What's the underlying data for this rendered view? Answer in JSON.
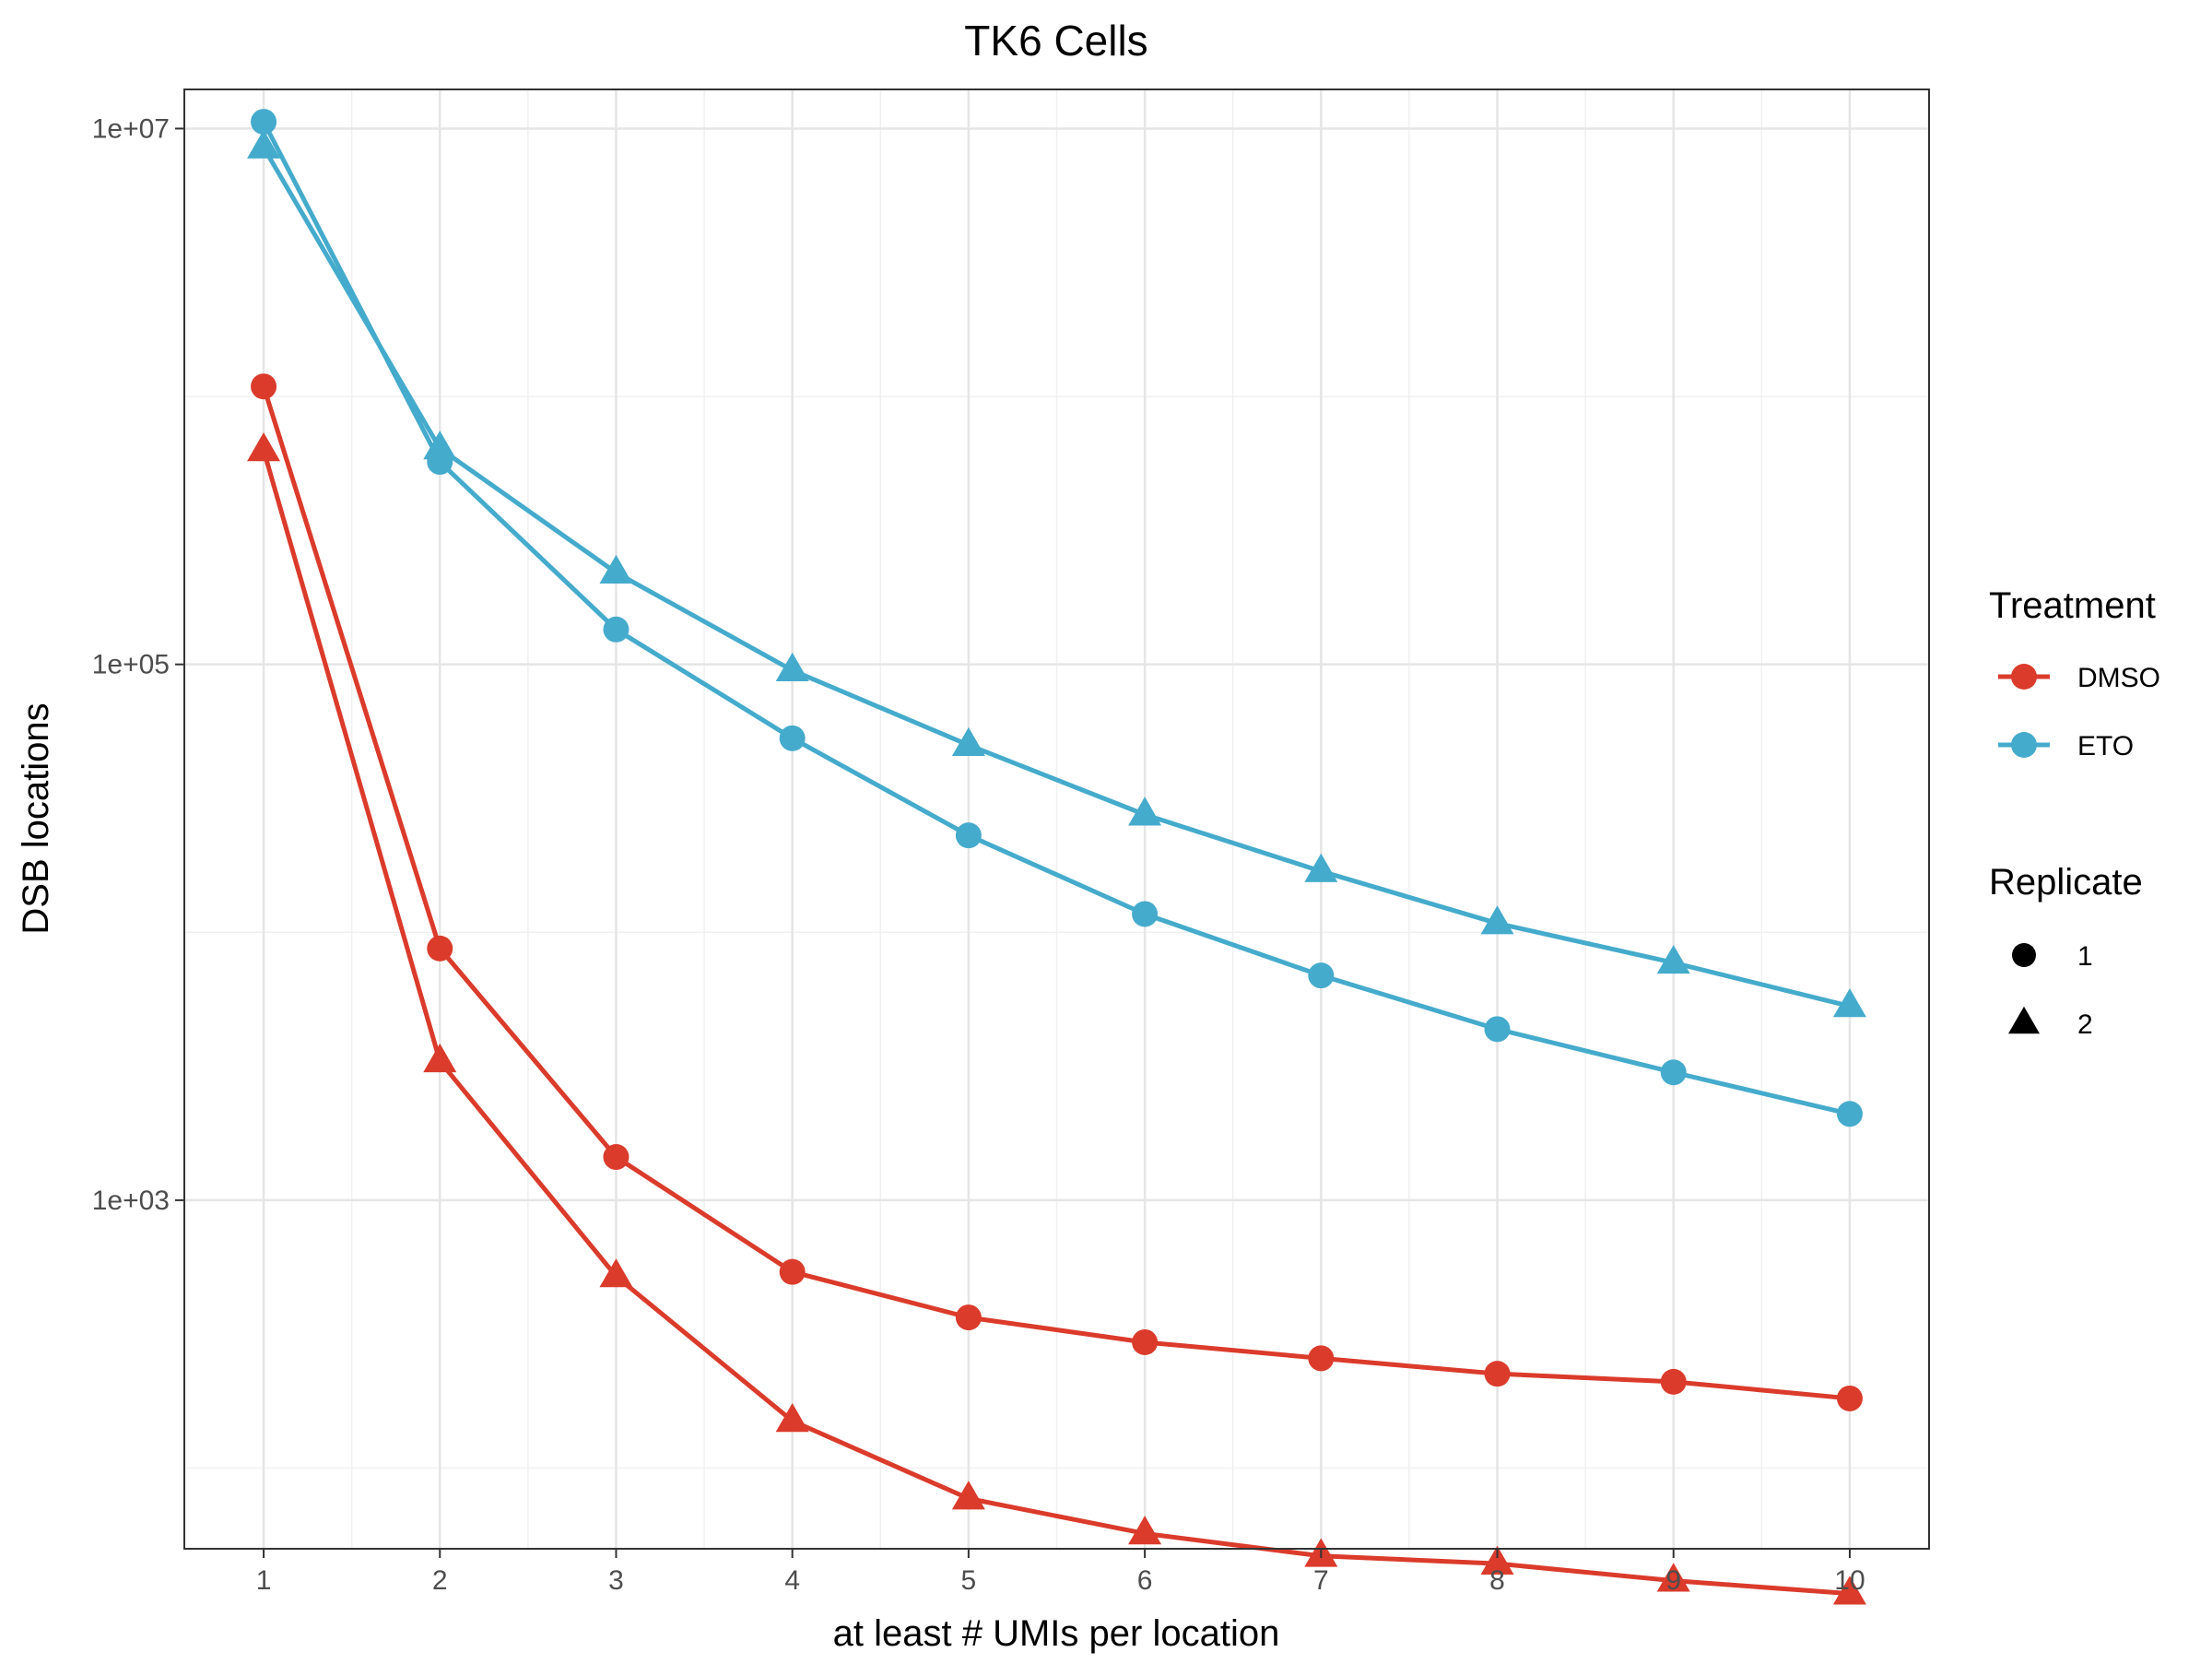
{
  "chart_data": {
    "type": "line",
    "title": "TK6 Cells",
    "xlabel": "at least # UMIs per location",
    "ylabel": "DSB locations",
    "x": [
      1,
      2,
      3,
      4,
      5,
      6,
      7,
      8,
      9,
      10
    ],
    "xlim": [
      0.55,
      10.45
    ],
    "y_scale": "log10",
    "ylim": [
      50,
      14000000
    ],
    "y_ticks": [
      1000,
      100000,
      10000000
    ],
    "y_tick_labels": [
      "1e+03",
      "1e+05",
      "1e+07"
    ],
    "grid": true,
    "legend_position": "right",
    "colors": {
      "DMSO": "#db3b2b",
      "ETO": "#45abcc"
    },
    "legend": {
      "color_title": "Treatment",
      "color_entries": [
        "DMSO",
        "ETO"
      ],
      "shape_title": "Replicate",
      "shape_entries": [
        "1",
        "2"
      ],
      "shapes": {
        "1": "circle",
        "2": "triangle"
      }
    },
    "series": [
      {
        "treatment": "DMSO",
        "replicate": "1",
        "values": [
          1090000,
          8700,
          1450,
          540,
          365,
          295,
          257,
          225,
          210,
          182
        ]
      },
      {
        "treatment": "DMSO",
        "replicate": "2",
        "values": [
          630000,
          3300,
          520,
          150,
          77,
          57,
          47,
          44,
          38,
          34
        ]
      },
      {
        "treatment": "ETO",
        "replicate": "1",
        "values": [
          10600000,
          570000,
          135000,
          53000,
          23000,
          11700,
          6900,
          4350,
          3000,
          2100
        ]
      },
      {
        "treatment": "ETO",
        "replicate": "2",
        "values": [
          8500000,
          640000,
          220000,
          95000,
          50000,
          27500,
          16900,
          10800,
          7700,
          5300
        ]
      }
    ]
  }
}
